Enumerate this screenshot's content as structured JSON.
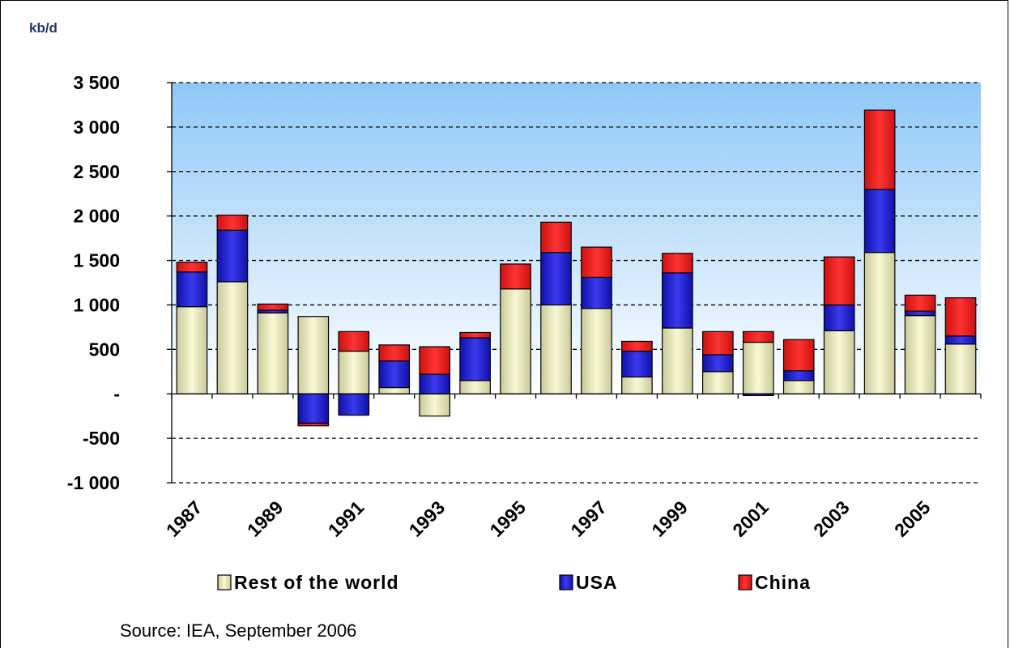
{
  "chart_data": {
    "type": "bar",
    "stacked": true,
    "unit_label": "kb/d",
    "source": "Source: IEA, September 2006",
    "x": [
      1987,
      1988,
      1989,
      1990,
      1991,
      1992,
      1993,
      1994,
      1995,
      1996,
      1997,
      1998,
      1999,
      2000,
      2001,
      2002,
      2003,
      2004,
      2005,
      2006
    ],
    "x_tick_labels": [
      "1987",
      "1989",
      "1991",
      "1993",
      "1995",
      "1997",
      "1999",
      "2001",
      "2003",
      "2005"
    ],
    "y_tick_labels": [
      "3 500",
      "3 000",
      "2 500",
      "2 000",
      "1 500",
      "1 000",
      "500",
      "-",
      "-500",
      "-1 000"
    ],
    "y_tick_values": [
      3500,
      3000,
      2500,
      2000,
      1500,
      1000,
      500,
      0,
      -500,
      -1000
    ],
    "ylim": [
      -1000,
      3500
    ],
    "grid": true,
    "legend_position": "bottom",
    "series": [
      {
        "name": "Rest of the world",
        "color": "#eeeebb",
        "values": [
          980,
          1260,
          910,
          870,
          480,
          70,
          -250,
          150,
          1180,
          1000,
          960,
          190,
          740,
          250,
          580,
          150,
          710,
          1590,
          880,
          560
        ]
      },
      {
        "name": "USA",
        "color": "#2222cc",
        "values": [
          390,
          580,
          30,
          -330,
          -240,
          300,
          220,
          480,
          0,
          590,
          350,
          290,
          620,
          190,
          -20,
          110,
          290,
          710,
          50,
          90
        ]
      },
      {
        "name": "China",
        "color": "#ee2222",
        "values": [
          110,
          170,
          70,
          -30,
          220,
          180,
          310,
          60,
          280,
          340,
          340,
          110,
          220,
          260,
          120,
          350,
          540,
          890,
          180,
          430
        ]
      }
    ]
  }
}
